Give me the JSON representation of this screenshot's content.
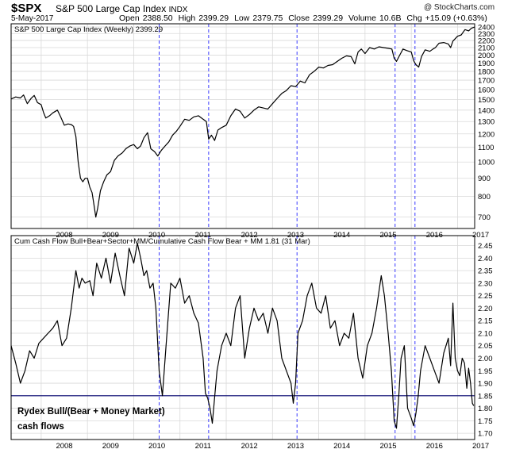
{
  "header": {
    "symbol": "$SPX",
    "name": "S&P 500 Large Cap Index",
    "exchange": "INDX",
    "date": "5-May-2017",
    "open_label": "Open",
    "open": "2388.50",
    "high_label": "High",
    "high": "2399.29",
    "low_label": "Low",
    "low": "2379.75",
    "close_label": "Close",
    "close": "2399.29",
    "volume_label": "Volume",
    "volume": "10.6B",
    "chg_label": "Chg",
    "chg": "+15.09 (+0.63%)",
    "copyright": "@ StockCharts.com"
  },
  "colors": {
    "price_line": "#000000",
    "grid": "#d9d9d9",
    "marker": "#3a3aff",
    "threshold": "#00006e"
  },
  "chart_data": [
    {
      "type": "line",
      "legend": "S&P 500 Large Cap Index (Weekly) 2399.29",
      "scale": "log",
      "ylim": [
        650,
        2450
      ],
      "yticks": [
        2400,
        2300,
        2200,
        2100,
        2000,
        1900,
        1800,
        1700,
        1600,
        1500,
        1400,
        1300,
        1200,
        1100,
        1000,
        900,
        800,
        700
      ],
      "xlim": [
        2007.35,
        2017.37
      ],
      "xticks": [
        "2008",
        "2009",
        "2010",
        "2011",
        "2012",
        "2013",
        "2014",
        "2015",
        "2016",
        "2017"
      ],
      "x": [
        2007.35,
        2007.45,
        2007.55,
        2007.62,
        2007.7,
        2007.78,
        2007.85,
        2007.92,
        2008.0,
        2008.05,
        2008.1,
        2008.18,
        2008.25,
        2008.35,
        2008.42,
        2008.5,
        2008.58,
        2008.65,
        2008.7,
        2008.75,
        2008.8,
        2008.85,
        2008.9,
        2008.95,
        2009.0,
        2009.05,
        2009.1,
        2009.14,
        2009.18,
        2009.22,
        2009.28,
        2009.35,
        2009.42,
        2009.5,
        2009.58,
        2009.66,
        2009.75,
        2009.83,
        2009.92,
        2010.0,
        2010.08,
        2010.15,
        2010.22,
        2010.3,
        2010.37,
        2010.45,
        2010.52,
        2010.6,
        2010.68,
        2010.76,
        2010.84,
        2010.92,
        2011.0,
        2011.1,
        2011.2,
        2011.3,
        2011.4,
        2011.5,
        2011.57,
        2011.62,
        2011.68,
        2011.75,
        2011.82,
        2011.9,
        2012.0,
        2012.1,
        2012.2,
        2012.3,
        2012.4,
        2012.5,
        2012.6,
        2012.7,
        2012.8,
        2012.9,
        2013.0,
        2013.1,
        2013.2,
        2013.3,
        2013.4,
        2013.5,
        2013.6,
        2013.7,
        2013.8,
        2013.9,
        2014.0,
        2014.1,
        2014.2,
        2014.3,
        2014.4,
        2014.5,
        2014.6,
        2014.7,
        2014.78,
        2014.85,
        2014.92,
        2015.0,
        2015.1,
        2015.2,
        2015.3,
        2015.4,
        2015.5,
        2015.58,
        2015.63,
        2015.68,
        2015.75,
        2015.82,
        2015.9,
        2016.0,
        2016.05,
        2016.1,
        2016.16,
        2016.22,
        2016.3,
        2016.4,
        2016.47,
        2016.52,
        2016.6,
        2016.7,
        2016.8,
        2016.85,
        2016.9,
        2017.0,
        2017.08,
        2017.16,
        2017.24,
        2017.3,
        2017.37
      ],
      "y": [
        1505,
        1525,
        1515,
        1545,
        1460,
        1510,
        1540,
        1470,
        1450,
        1380,
        1330,
        1350,
        1375,
        1400,
        1340,
        1270,
        1280,
        1275,
        1260,
        1180,
        1000,
        900,
        880,
        900,
        900,
        850,
        820,
        760,
        700,
        740,
        830,
        880,
        920,
        940,
        1010,
        1040,
        1060,
        1090,
        1110,
        1120,
        1090,
        1110,
        1170,
        1210,
        1090,
        1070,
        1040,
        1080,
        1110,
        1140,
        1190,
        1220,
        1260,
        1320,
        1310,
        1340,
        1350,
        1320,
        1300,
        1160,
        1190,
        1150,
        1230,
        1250,
        1270,
        1350,
        1410,
        1390,
        1330,
        1360,
        1400,
        1430,
        1420,
        1410,
        1460,
        1510,
        1560,
        1590,
        1640,
        1630,
        1690,
        1670,
        1760,
        1800,
        1850,
        1840,
        1870,
        1880,
        1920,
        1960,
        1990,
        1980,
        1890,
        2040,
        2080,
        2020,
        2100,
        2080,
        2110,
        2100,
        2090,
        2080,
        1960,
        1920,
        2000,
        2080,
        2060,
        2040,
        1930,
        1880,
        1850,
        1980,
        2070,
        2050,
        2080,
        2100,
        2160,
        2170,
        2150,
        2100,
        2190,
        2260,
        2280,
        2360,
        2340,
        2380,
        2399.29
      ]
    },
    {
      "type": "line",
      "legend": "Cum Cash Flow Bull+Bear+Sector+MM/Cumulative Cash Flow Bear + MM 1.81 (31 Mar)",
      "ylim": [
        1.675,
        2.49
      ],
      "yticks": [
        2.45,
        2.4,
        2.35,
        2.3,
        2.25,
        2.2,
        2.15,
        2.1,
        2.05,
        2.0,
        1.95,
        1.9,
        1.85,
        1.8,
        1.75,
        1.7
      ],
      "xlim": [
        2007.35,
        2017.37
      ],
      "xticks": [
        "2008",
        "2009",
        "2010",
        "2011",
        "2012",
        "2013",
        "2014",
        "2015",
        "2016",
        "2017"
      ],
      "threshold": 1.85,
      "annotation": [
        "Rydex Bull/(Bear + Money Market)",
        "cash flows"
      ],
      "x": [
        2007.35,
        2007.45,
        2007.55,
        2007.65,
        2007.75,
        2007.85,
        2007.95,
        2008.05,
        2008.15,
        2008.25,
        2008.35,
        2008.45,
        2008.55,
        2008.65,
        2008.75,
        2008.82,
        2008.88,
        2008.95,
        2009.05,
        2009.12,
        2009.2,
        2009.3,
        2009.4,
        2009.5,
        2009.6,
        2009.7,
        2009.8,
        2009.9,
        2010.0,
        2010.08,
        2010.15,
        2010.22,
        2010.28,
        2010.35,
        2010.42,
        2010.48,
        2010.55,
        2010.62,
        2010.7,
        2010.8,
        2010.9,
        2011.0,
        2011.1,
        2011.2,
        2011.3,
        2011.4,
        2011.5,
        2011.55,
        2011.6,
        2011.65,
        2011.7,
        2011.8,
        2011.9,
        2012.0,
        2012.1,
        2012.2,
        2012.3,
        2012.4,
        2012.5,
        2012.6,
        2012.7,
        2012.8,
        2012.9,
        2013.0,
        2013.1,
        2013.2,
        2013.3,
        2013.4,
        2013.45,
        2013.5,
        2013.55,
        2013.65,
        2013.75,
        2013.85,
        2013.95,
        2014.05,
        2014.15,
        2014.25,
        2014.35,
        2014.45,
        2014.55,
        2014.65,
        2014.75,
        2014.85,
        2014.95,
        2015.05,
        2015.15,
        2015.25,
        2015.35,
        2015.42,
        2015.5,
        2015.57,
        2015.63,
        2015.68,
        2015.73,
        2015.78,
        2015.85,
        2015.92,
        2016.0,
        2016.05,
        2016.1,
        2016.15,
        2016.2,
        2016.3,
        2016.4,
        2016.5,
        2016.6,
        2016.7,
        2016.8,
        2016.85,
        2016.9,
        2016.95,
        2017.0,
        2017.05,
        2017.1,
        2017.15,
        2017.2,
        2017.24,
        2017.28,
        2017.32,
        2017.35
      ],
      "y": [
        2.05,
        1.98,
        1.9,
        1.95,
        2.03,
        2.0,
        2.06,
        2.08,
        2.1,
        2.12,
        2.15,
        2.05,
        2.08,
        2.2,
        2.35,
        2.28,
        2.32,
        2.3,
        2.31,
        2.25,
        2.38,
        2.32,
        2.4,
        2.3,
        2.42,
        2.33,
        2.25,
        2.44,
        2.38,
        2.46,
        2.4,
        2.33,
        2.35,
        2.28,
        2.3,
        2.2,
        1.95,
        1.85,
        2.05,
        2.3,
        2.28,
        2.32,
        2.22,
        2.25,
        2.18,
        2.14,
        2.0,
        1.86,
        1.84,
        1.8,
        1.74,
        1.95,
        2.05,
        2.1,
        2.05,
        2.2,
        2.25,
        2.0,
        2.12,
        2.2,
        2.15,
        2.18,
        2.1,
        2.2,
        2.15,
        2.0,
        1.95,
        1.9,
        1.82,
        1.9,
        2.1,
        2.15,
        2.25,
        2.3,
        2.2,
        2.18,
        2.25,
        2.12,
        2.15,
        2.05,
        2.1,
        2.08,
        2.18,
        2.0,
        1.92,
        2.05,
        2.1,
        2.2,
        2.33,
        2.25,
        2.1,
        1.95,
        1.75,
        1.72,
        1.85,
        2.0,
        2.05,
        1.8,
        1.76,
        1.73,
        1.78,
        1.85,
        1.95,
        2.05,
        2.0,
        1.95,
        1.9,
        2.02,
        2.08,
        1.97,
        2.22,
        2.0,
        1.95,
        1.93,
        2.0,
        1.98,
        1.88,
        1.96,
        1.9,
        1.82,
        1.81
      ]
    }
  ],
  "markers": [
    2010.55,
    2011.62,
    2013.53,
    2015.65,
    2016.08
  ]
}
